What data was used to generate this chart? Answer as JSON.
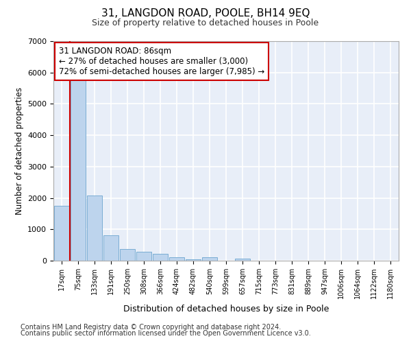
{
  "title": "31, LANGDON ROAD, POOLE, BH14 9EQ",
  "subtitle": "Size of property relative to detached houses in Poole",
  "xlabel": "Distribution of detached houses by size in Poole",
  "ylabel": "Number of detached properties",
  "bar_color": "#bdd4ed",
  "bar_edge_color": "#7aadd4",
  "background_color": "#e8eef8",
  "grid_color": "#ffffff",
  "bins": [
    "17sqm",
    "75sqm",
    "133sqm",
    "191sqm",
    "250sqm",
    "308sqm",
    "366sqm",
    "424sqm",
    "482sqm",
    "540sqm",
    "599sqm",
    "657sqm",
    "715sqm",
    "773sqm",
    "831sqm",
    "889sqm",
    "947sqm",
    "1006sqm",
    "1064sqm",
    "1122sqm",
    "1180sqm"
  ],
  "values": [
    1750,
    5750,
    2080,
    800,
    375,
    280,
    210,
    100,
    50,
    100,
    0,
    70,
    0,
    0,
    0,
    0,
    0,
    0,
    0,
    0,
    0
  ],
  "property_line_color": "#cc0000",
  "property_line_x": 0.5,
  "annotation_line1": "31 LANGDON ROAD: 86sqm",
  "annotation_line2": "← 27% of detached houses are smaller (3,000)",
  "annotation_line3": "72% of semi-detached houses are larger (7,985) →",
  "annotation_box_color": "#ffffff",
  "annotation_box_edge": "#cc0000",
  "ylim": [
    0,
    7000
  ],
  "yticks": [
    0,
    1000,
    2000,
    3000,
    4000,
    5000,
    6000,
    7000
  ],
  "footnote1": "Contains HM Land Registry data © Crown copyright and database right 2024.",
  "footnote2": "Contains public sector information licensed under the Open Government Licence v3.0."
}
